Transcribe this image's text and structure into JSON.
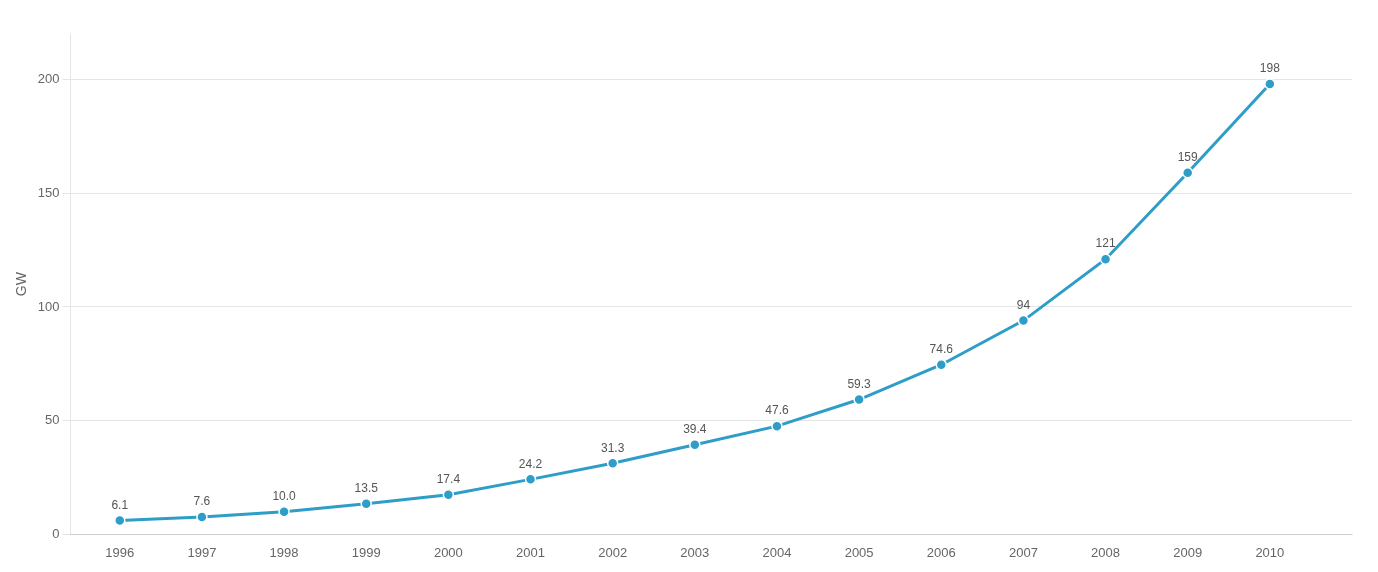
{
  "chart_data": {
    "type": "line",
    "x": [
      1996,
      1997,
      1998,
      1999,
      2000,
      2001,
      2002,
      2003,
      2004,
      2005,
      2006,
      2007,
      2008,
      2009,
      2010
    ],
    "values": [
      6.1,
      7.6,
      10.0,
      13.5,
      17.4,
      24.2,
      31.3,
      39.4,
      47.6,
      59.3,
      74.6,
      94,
      121,
      159,
      198
    ],
    "value_labels": [
      "6.1",
      "7.6",
      "10.0",
      "13.5",
      "17.4",
      "24.2",
      "31.3",
      "39.4",
      "47.6",
      "59.3",
      "74.6",
      "94",
      "121",
      "159",
      "198"
    ],
    "color": "#2e9dc8",
    "marker": "circle",
    "ylabel": "GW",
    "xlim": [
      1995.4,
      2011.0
    ],
    "xticks": [
      1996,
      1997,
      1998,
      1999,
      2000,
      2001,
      2002,
      2003,
      2004,
      2005,
      2006,
      2007,
      2008,
      2009,
      2010
    ],
    "ylim": [
      0,
      220
    ],
    "yticks": [
      0,
      50,
      100,
      150,
      200
    ],
    "grid": true,
    "data_labels": true
  }
}
